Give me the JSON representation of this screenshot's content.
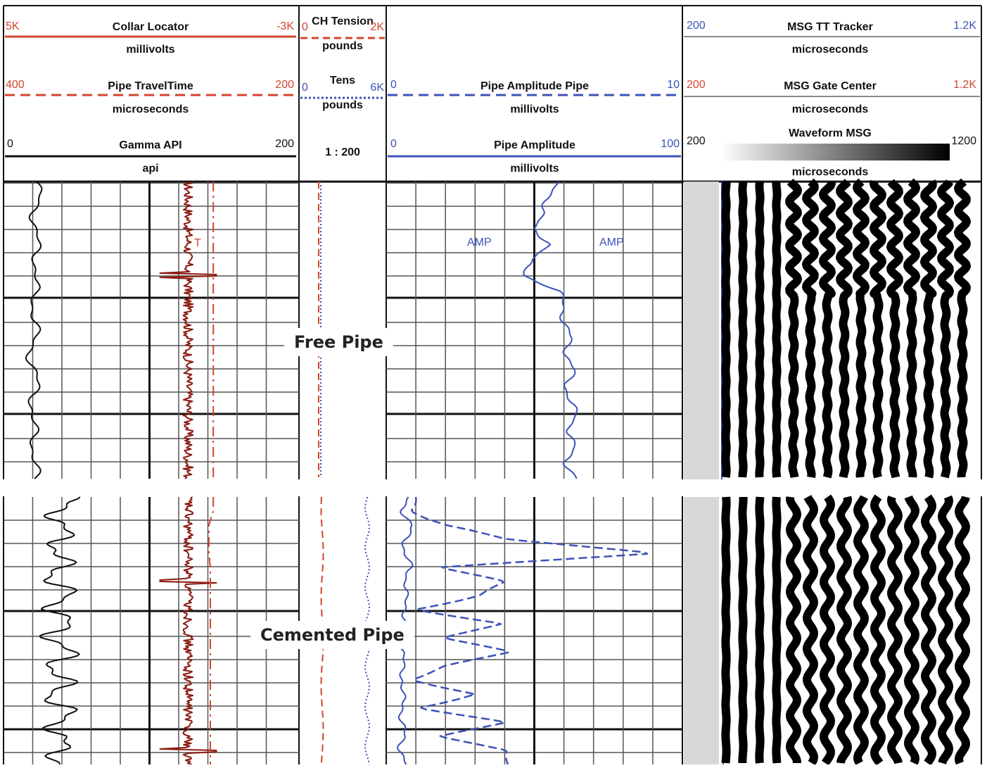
{
  "colors": {
    "black": "#111111",
    "red": "#d2452d",
    "darkred": "#8b1a10",
    "blue": "#3d52b8",
    "grid": "#222222"
  },
  "headers": {
    "track1": [
      {
        "left": "5K",
        "title": "Collar Locator",
        "right": "-3K",
        "unit": "millivolts",
        "color": "#d2452d",
        "style": "solid"
      },
      {
        "left": "400",
        "title": "Pipe TravelTime",
        "right": "200",
        "unit": "microseconds",
        "color": "#d2452d",
        "style": "dashed"
      },
      {
        "left": "0",
        "title": "Gamma API",
        "right": "200",
        "unit": "api",
        "color": "#111111",
        "style": "solid"
      }
    ],
    "depth": {
      "ch_tension": {
        "left": "0",
        "title": "CH Tension",
        "right": "2K",
        "unit": "pounds",
        "color": "#d2452d",
        "style": "dashed"
      },
      "tens": {
        "left": "0",
        "title": "Tens",
        "right": "6K",
        "unit": "pounds",
        "color": "#3d52b8",
        "style": "dotted"
      },
      "scale": "1 : 200"
    },
    "track3": [
      {
        "left": "0",
        "title": "Pipe Amplitude Pipe",
        "right": "10",
        "unit": "millivolts",
        "color": "#3d52b8",
        "style": "dashed"
      },
      {
        "left": "0",
        "title": "Pipe Amplitude",
        "right": "100",
        "unit": "millivolts",
        "color": "#3d52b8",
        "style": "solid"
      }
    ],
    "track4": [
      {
        "left": "200",
        "title": "MSG TT Tracker",
        "right": "1.2K",
        "unit": "microseconds",
        "color": "#3d52b8"
      },
      {
        "left": "200",
        "title": "MSG Gate Center",
        "right": "1.2K",
        "unit": "microseconds",
        "color": "#d2452d"
      },
      {
        "left": "200",
        "title": "Waveform MSG",
        "right": "1200",
        "unit": "microseconds",
        "color": "#111111"
      }
    ]
  },
  "annotations": {
    "free_pipe": "Free Pipe",
    "cemented_pipe": "Cemented Pipe",
    "tt_marker": "T",
    "amp_marker": "AMP"
  },
  "chart_data": {
    "type": "line",
    "title": "",
    "sections": [
      {
        "name": "Free Pipe",
        "series": [
          {
            "name": "Gamma API",
            "x_range": [
              0,
              200
            ],
            "values": [
              22,
              23,
              22,
              21,
              22,
              23,
              22,
              20,
              21,
              22,
              20,
              19,
              20,
              22,
              21,
              19,
              20,
              21,
              22,
              20
            ]
          },
          {
            "name": "Collar Locator",
            "x_range": [
              5000,
              -3000
            ],
            "values": [
              0,
              0,
              0,
              0,
              0,
              0,
              1800,
              0,
              0,
              0,
              0,
              0,
              0,
              0,
              0,
              0,
              0,
              0,
              0,
              0
            ]
          },
          {
            "name": "Pipe TravelTime",
            "x_range": [
              400,
              200
            ],
            "values": [
              258,
              258,
              258,
              258,
              258,
              258,
              258,
              258,
              258,
              258,
              258,
              258,
              258,
              258,
              258,
              258,
              258,
              258,
              258,
              258
            ]
          },
          {
            "name": "Pipe Amplitude",
            "x_range": [
              0,
              100
            ],
            "values": [
              57,
              55,
              53,
              49,
              56,
              48,
              47,
              58,
              60,
              60,
              62,
              61,
              63,
              61,
              62,
              64,
              62,
              63,
              61,
              64
            ]
          }
        ]
      },
      {
        "name": "Cemented Pipe",
        "series": [
          {
            "name": "Gamma API",
            "x_range": [
              0,
              200
            ],
            "values": [
              42,
              40,
              36,
              42,
              35,
              40,
              34,
              42,
              36,
              40,
              35,
              42,
              36,
              40,
              34,
              42,
              36,
              40,
              35,
              41
            ]
          },
          {
            "name": "Collar Locator",
            "x_range": [
              5000,
              -3000
            ],
            "values": [
              0,
              0,
              0,
              0,
              0,
              0,
              1800,
              0,
              0,
              0,
              0,
              0,
              0,
              0,
              0,
              0,
              0,
              0,
              1800,
              0
            ]
          },
          {
            "name": "Pipe TravelTime",
            "x_range": [
              400,
              200
            ],
            "values": [
              258,
              258,
              261,
              261,
              261,
              260,
              260,
              260,
              260,
              260,
              260,
              260,
              260,
              260,
              260,
              260,
              260,
              260,
              260,
              260
            ]
          },
          {
            "name": "Pipe Amplitude",
            "x_range": [
              0,
              100
            ],
            "values": [
              7,
              6,
              8,
              7,
              6,
              8,
              7,
              6,
              7,
              6,
              5,
              6,
              5,
              6,
              5,
              6,
              5,
              6,
              5,
              6
            ]
          },
          {
            "name": "Pipe Amplitude Pipe",
            "x_range": [
              0,
              10
            ],
            "values": [
              1,
              1,
              2,
              4,
              9,
              2,
              4,
              3,
              1,
              4,
              2,
              4,
              2,
              1,
              3,
              1,
              4,
              2,
              4,
              4
            ]
          }
        ]
      }
    ]
  }
}
